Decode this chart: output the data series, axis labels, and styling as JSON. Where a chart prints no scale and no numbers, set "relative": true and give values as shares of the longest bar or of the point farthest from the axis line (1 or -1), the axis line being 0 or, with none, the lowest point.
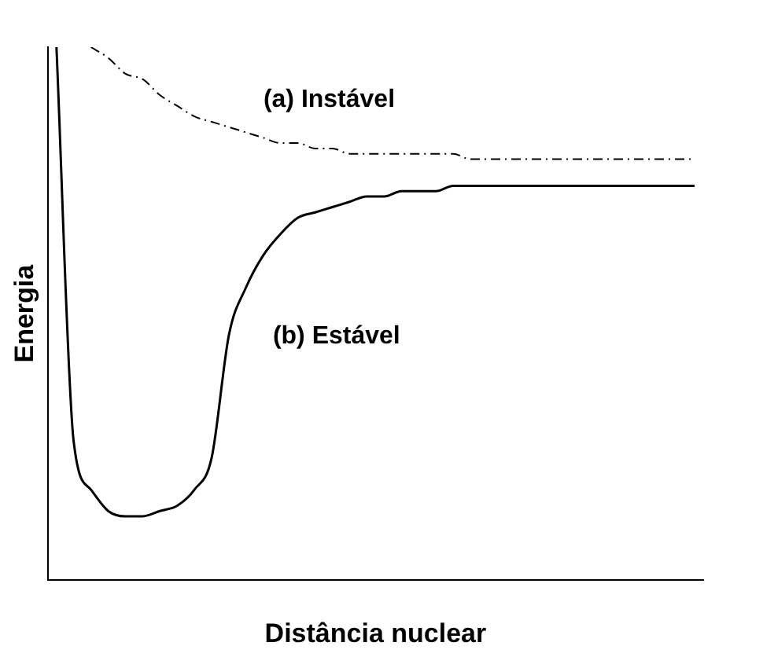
{
  "chart_data": {
    "type": "line",
    "relative": true,
    "xlabel": "Distância nuclear",
    "ylabel": "Energia",
    "legend": false,
    "marker": "none",
    "grid": false,
    "categories": [
      null,
      null,
      null,
      null,
      null,
      null,
      null,
      null,
      null,
      null,
      null,
      null,
      null,
      null,
      null,
      null,
      null,
      null,
      null,
      null,
      null,
      null,
      null,
      null,
      null,
      null,
      null,
      null,
      null,
      null,
      null,
      null,
      null,
      null,
      null,
      null,
      null,
      null
    ],
    "series": [
      {
        "name": "(a) Instável",
        "color": "#000000",
        "line_style": "dashed",
        "values": [
          null,
          null,
          1.0,
          0.98,
          0.95,
          0.94,
          0.91,
          0.89,
          0.87,
          0.86,
          0.85,
          0.84,
          0.83,
          0.82,
          0.82,
          0.81,
          0.81,
          0.8,
          0.8,
          0.8,
          0.8,
          0.8,
          0.8,
          0.8,
          0.79,
          0.79,
          0.79,
          0.79,
          0.79,
          0.79,
          0.79,
          0.79,
          0.79,
          0.79,
          0.79,
          0.79,
          0.79,
          0.79
        ]
      },
      {
        "name": "(b) Estável",
        "color": "#000000",
        "line_style": "solid",
        "values": [
          1.0,
          0.26,
          0.17,
          0.13,
          0.12,
          0.12,
          0.13,
          0.14,
          0.17,
          0.23,
          0.46,
          0.55,
          0.61,
          0.65,
          0.68,
          0.69,
          0.7,
          0.71,
          0.72,
          0.72,
          0.73,
          0.73,
          0.73,
          0.74,
          0.74,
          0.74,
          0.74,
          0.74,
          0.74,
          0.74,
          0.74,
          0.74,
          0.74,
          0.74,
          0.74,
          0.74,
          0.74,
          0.74
        ]
      }
    ]
  }
}
